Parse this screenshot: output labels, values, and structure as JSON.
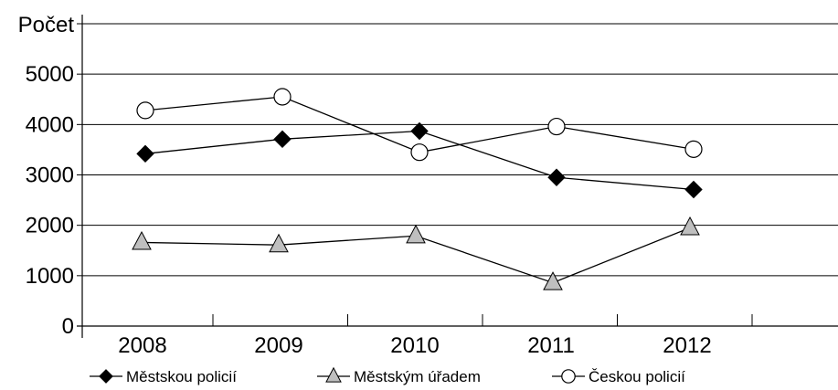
{
  "chart_data": {
    "type": "line",
    "ylabel": "Počet",
    "xlabel": "",
    "categories": [
      "2008",
      "2009",
      "2010",
      "2011",
      "2012"
    ],
    "yticks": [
      0,
      1000,
      2000,
      3000,
      4000,
      5000
    ],
    "ylim": [
      0,
      6000
    ],
    "grid": true,
    "legend_position": "bottom",
    "series": [
      {
        "name": "Městskou policií",
        "marker": "diamond",
        "values": [
          3420,
          3710,
          3870,
          2950,
          2710
        ],
        "marker_fill": "#000000"
      },
      {
        "name": "Městským úřadem",
        "marker": "triangle",
        "values": [
          1660,
          1610,
          1790,
          860,
          1950
        ],
        "marker_fill": "#bfbfbf"
      },
      {
        "name": "Českou policií",
        "marker": "circle",
        "values": [
          4280,
          4550,
          3450,
          3960,
          3510
        ],
        "marker_fill": "#ffffff"
      }
    ]
  }
}
